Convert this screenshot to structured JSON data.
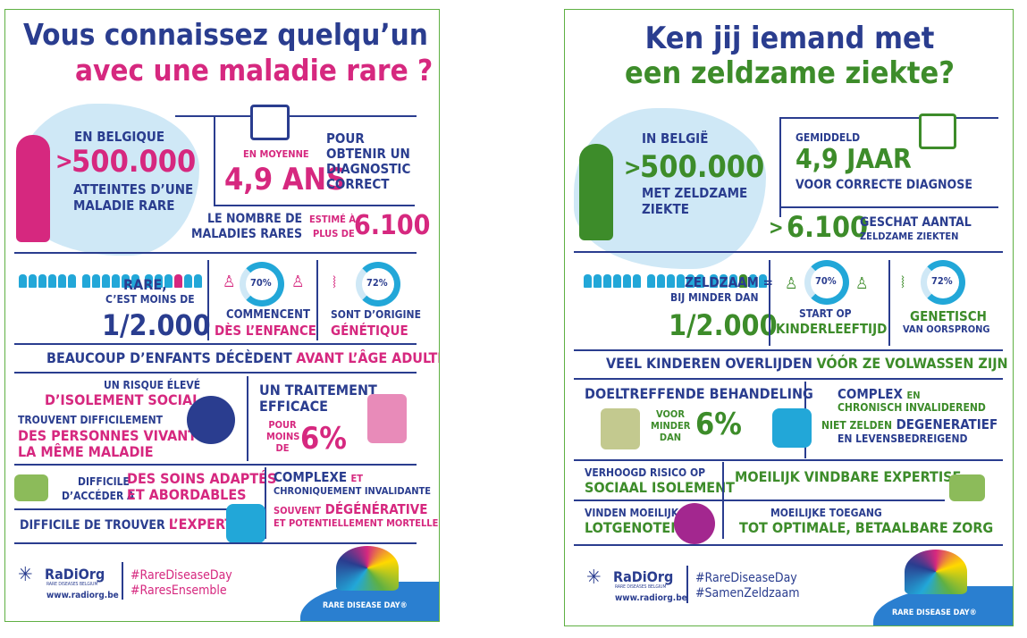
{
  "fr": {
    "title1": "Vous connaissez quelqu’un",
    "title2": "avec une maladie rare ?",
    "belg_label": "EN BELGIQUE",
    "gt": ">",
    "belg_num": "500.000",
    "belg_sub1": "ATTEINTES D’UNE",
    "belg_sub2": "MALADIE RARE",
    "moy": "EN MOYENNE",
    "ans": "4,9 ANS",
    "pour": "POUR",
    "obtenir": "OBTENIR UN",
    "diag": "DIAGNOSTIC",
    "correct": "CORRECT",
    "nombre1": "LE NOMBRE DE",
    "nombre2": "MALADIES RARES",
    "estime1": "ESTIMÉ À",
    "estime2": "PLUS DE",
    "count": "6.100",
    "rare1": "RARE,",
    "rare2": "C’EST MOINS DE",
    "ratio": "1/2.000",
    "pct70": "70%",
    "comm1": "COMMENCENT",
    "comm2": "DÈS L’ENFANCE",
    "pct72": "72%",
    "gen1": "SONT D’ORIGINE",
    "gen2": "GÉNÉTIQUE",
    "enfants_a": "BEAUCOUP D’ENFANTS DÉCÈDENT",
    "enfants_b": "AVANT L’ÂGE ADULTE",
    "risque": "UN RISQUE ÉLEVÉ",
    "isolement": "D’ISOLEMENT SOCIAL",
    "trouvent": "TROUVENT DIFFICILEMENT",
    "personnes1": "DES PERSONNES VIVANT",
    "personnes2": "LA MÊME MALADIE",
    "trait1": "UN TRAITEMENT",
    "trait2": "EFFICACE",
    "pour_moins1": "POUR",
    "pour_moins2": "MOINS",
    "pour_moins3": "DE",
    "pct6": "6%",
    "diff1": "DIFFICILE",
    "diff2": "D’ACCÉDER À",
    "soins1": "DES SOINS ADAPTÉS",
    "soins2": "ET ABORDABLES",
    "complexe": "COMPLEXE",
    "et": "ET",
    "chron": "CHRONIQUEMENT INVALIDANTE",
    "souvent": "SOUVENT",
    "degen": "DÉGÉNÉRATIVE",
    "potent": "ET POTENTIELLEMENT MORTELLE",
    "trouver": "DIFFICILE DE TROUVER",
    "expertise": "L’EXPERTISE",
    "org": "RaDiOrg",
    "org_sub": "RARE DISEASES BELGIUM",
    "url": "www.radiorg.be",
    "tag1": "#RareDiseaseDay",
    "tag2": "#RaresEnsemble",
    "rdd": "RARE DISEASE DAY®"
  },
  "nl": {
    "title1": "Ken jij iemand met",
    "title2": "een zeldzame ziekte?",
    "belg_label": "IN BELGIË",
    "gt": ">",
    "belg_num": "500.000",
    "belg_sub1": "MET ZELDZAME",
    "belg_sub2": "ZIEKTE",
    "gem": "GEMIDDELD",
    "jaar": "4,9 JAAR",
    "voor": "VOOR CORRECTE DIAGNOSE",
    "gt2": ">",
    "count": "6.100",
    "geschat1": "GESCHAT AANTAL",
    "geschat2": "ZELDZAME ZIEKTEN",
    "zeld1": "ZELDZAAM =",
    "zeld2": "BIJ MINDER DAN",
    "ratio": "1/2.000",
    "pct70": "70%",
    "start1": "START OP",
    "start2": "KINDERLEEFTIJD",
    "pct72": "72%",
    "gen1": "GENETISCH",
    "gen2": "VAN OORSPRONG",
    "kind_a": "VEEL KINDEREN OVERLIJDEN",
    "kind_b": "VÓÓR ZE VOLWASSEN ZIJN",
    "doel": "DOELTREFFENDE BEHANDELING",
    "voor1": "VOOR",
    "voor2": "MINDER",
    "voor3": "DAN",
    "pct6": "6%",
    "complex": "COMPLEX",
    "en": "EN",
    "chron": "CHRONISCH INVALIDEREND",
    "niet": "NIET ZELDEN",
    "degen": "DEGENERATIEF",
    "levens": "EN LEVENSBEDREIGEND",
    "verh1": "VERHOOGD RISICO OP",
    "verh2": "SOCIAAL ISOLEMENT",
    "moeil": "MOEILIJK VINDBARE EXPERTISE",
    "vinden1": "VINDEN MOEILIJK",
    "vinden2": "LOTGENOTEN",
    "toegang": "MOEILIJKE TOEGANG",
    "zorg": "TOT OPTIMALE, BETAALBARE ZORG",
    "org": "RaDiOrg",
    "org_sub": "RARE DISEASES BELGIUM",
    "url": "www.radiorg.be",
    "tag1": "#RareDiseaseDay",
    "tag2": "#SamenZeldzaam",
    "rdd": "RARE DISEASE DAY®"
  },
  "colors": {
    "blue": "#2a3d8f",
    "pink": "#d6287f",
    "green": "#3d8c2a",
    "light": "#cfe8f6",
    "frame": "#5fb043"
  }
}
